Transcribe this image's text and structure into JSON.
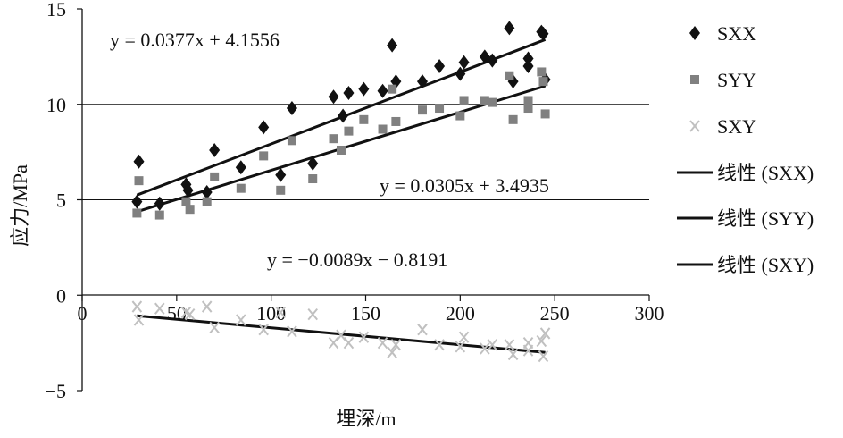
{
  "chart_data": {
    "type": "scatter",
    "xlabel": "埋深/m",
    "ylabel": "应力/MPa",
    "xlim": [
      0,
      300
    ],
    "ylim": [
      -5,
      15
    ],
    "x_ticks": [
      "0",
      "50",
      "100",
      "150",
      "200",
      "250",
      "300"
    ],
    "y_ticks": [
      "15",
      "10",
      "5",
      "0",
      "−5"
    ],
    "grid": "horizontal major gridlines at 5 and 10",
    "legend_position": "right",
    "series": [
      {
        "name": "SXX",
        "marker": "diamond",
        "color": "#111111",
        "points": [
          [
            29,
            4.9
          ],
          [
            30,
            7.0
          ],
          [
            41,
            4.8
          ],
          [
            55,
            5.8
          ],
          [
            56,
            5.5
          ],
          [
            66,
            5.4
          ],
          [
            70,
            7.6
          ],
          [
            84,
            6.7
          ],
          [
            96,
            8.8
          ],
          [
            105,
            6.3
          ],
          [
            111,
            9.8
          ],
          [
            122,
            6.9
          ],
          [
            133,
            10.4
          ],
          [
            138,
            9.4
          ],
          [
            141,
            10.6
          ],
          [
            149,
            10.8
          ],
          [
            159,
            10.7
          ],
          [
            164,
            13.1
          ],
          [
            166,
            11.2
          ],
          [
            180,
            11.2
          ],
          [
            189,
            12.0
          ],
          [
            200,
            11.6
          ],
          [
            202,
            12.2
          ],
          [
            213,
            12.5
          ],
          [
            217,
            12.3
          ],
          [
            226,
            14.0
          ],
          [
            228,
            11.2
          ],
          [
            236,
            12.0
          ],
          [
            236,
            12.4
          ],
          [
            243,
            13.8
          ],
          [
            244,
            13.7
          ],
          [
            245,
            11.3
          ]
        ]
      },
      {
        "name": "SYY",
        "marker": "square",
        "color": "#808080",
        "points": [
          [
            29,
            4.3
          ],
          [
            30,
            6.0
          ],
          [
            41,
            4.2
          ],
          [
            55,
            4.9
          ],
          [
            57,
            4.5
          ],
          [
            66,
            4.9
          ],
          [
            70,
            6.2
          ],
          [
            84,
            5.6
          ],
          [
            96,
            7.3
          ],
          [
            105,
            5.5
          ],
          [
            111,
            8.1
          ],
          [
            122,
            6.1
          ],
          [
            133,
            8.2
          ],
          [
            137,
            7.6
          ],
          [
            141,
            8.6
          ],
          [
            149,
            9.2
          ],
          [
            159,
            8.7
          ],
          [
            164,
            10.8
          ],
          [
            166,
            9.1
          ],
          [
            180,
            9.7
          ],
          [
            189,
            9.8
          ],
          [
            200,
            9.4
          ],
          [
            202,
            10.2
          ],
          [
            213,
            10.2
          ],
          [
            217,
            10.1
          ],
          [
            226,
            11.5
          ],
          [
            228,
            9.2
          ],
          [
            236,
            9.8
          ],
          [
            236,
            10.2
          ],
          [
            243,
            11.7
          ],
          [
            244,
            11.2
          ],
          [
            245,
            9.5
          ]
        ]
      },
      {
        "name": "SXY",
        "marker": "x",
        "color": "#c0c0c0",
        "points": [
          [
            29,
            -0.6
          ],
          [
            30,
            -1.3
          ],
          [
            41,
            -0.7
          ],
          [
            55,
            -0.9
          ],
          [
            57,
            -1.0
          ],
          [
            66,
            -0.6
          ],
          [
            70,
            -1.7
          ],
          [
            84,
            -1.3
          ],
          [
            96,
            -1.8
          ],
          [
            105,
            -0.9
          ],
          [
            111,
            -1.9
          ],
          [
            122,
            -1.0
          ],
          [
            133,
            -2.5
          ],
          [
            137,
            -2.1
          ],
          [
            141,
            -2.5
          ],
          [
            149,
            -2.2
          ],
          [
            159,
            -2.5
          ],
          [
            164,
            -3.0
          ],
          [
            166,
            -2.6
          ],
          [
            180,
            -1.8
          ],
          [
            189,
            -2.6
          ],
          [
            200,
            -2.7
          ],
          [
            202,
            -2.2
          ],
          [
            213,
            -2.8
          ],
          [
            217,
            -2.6
          ],
          [
            226,
            -2.6
          ],
          [
            228,
            -3.1
          ],
          [
            236,
            -2.5
          ],
          [
            236,
            -2.9
          ],
          [
            243,
            -2.4
          ],
          [
            244,
            -3.2
          ],
          [
            245,
            -2.0
          ]
        ]
      }
    ],
    "trendlines": [
      {
        "name": "线性 (SXX)",
        "slope": 0.0377,
        "intercept": 4.1556,
        "x_range": [
          29,
          245
        ],
        "equation": "y = 0.0377x + 4.1556"
      },
      {
        "name": "线性 (SYY)",
        "slope": 0.0305,
        "intercept": 3.4935,
        "x_range": [
          29,
          245
        ],
        "equation": "y = 0.0305x + 3.4935"
      },
      {
        "name": "线性 (SXY)",
        "slope": -0.0089,
        "intercept": -0.8191,
        "x_range": [
          29,
          245
        ],
        "equation": "y = −0.0089x − 0.8191"
      }
    ]
  }
}
